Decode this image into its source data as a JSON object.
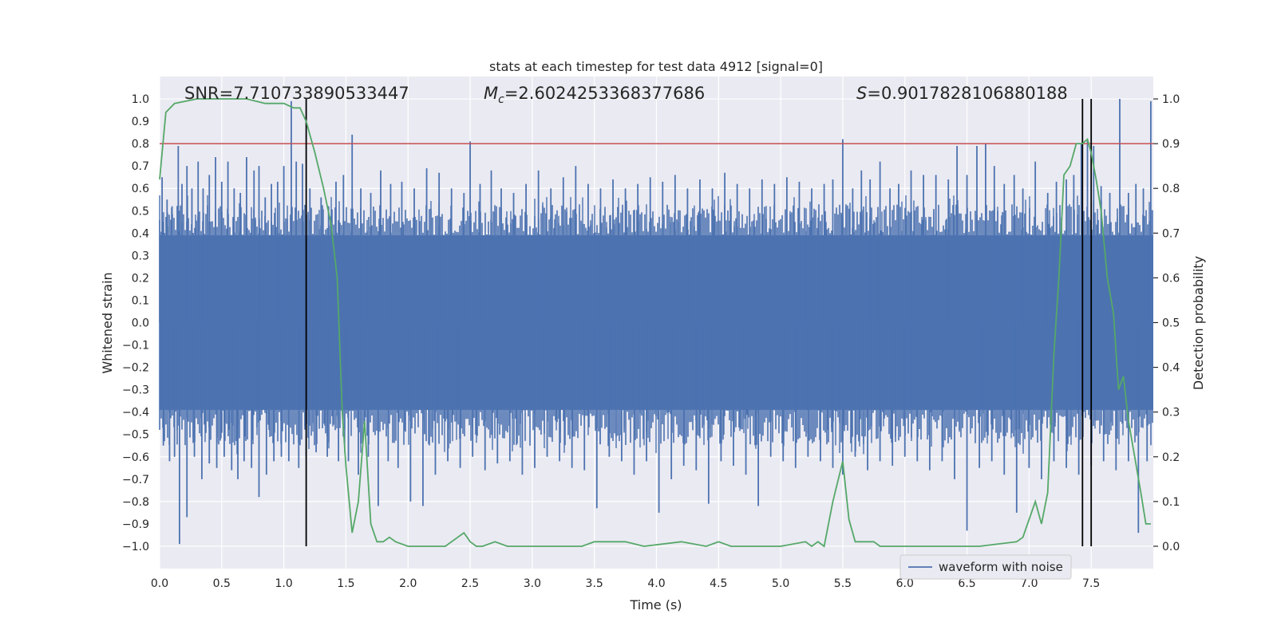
{
  "chart_data": {
    "type": "line",
    "title": "stats at each timestep for test data 4912 [signal=0]",
    "xlabel": "Time (s)",
    "ylabel": "Whitened strain",
    "y2label": "Detection probability",
    "xlim": [
      0.0,
      8.0
    ],
    "ylim": [
      -1.1,
      1.1
    ],
    "y2lim": [
      -0.05,
      1.05
    ],
    "xticks": [
      0.0,
      0.5,
      1.0,
      1.5,
      2.0,
      2.5,
      3.0,
      3.5,
      4.0,
      4.5,
      5.0,
      5.5,
      6.0,
      6.5,
      7.0,
      7.5
    ],
    "xtick_labels": [
      "0.0",
      "0.5",
      "1.0",
      "1.5",
      "2.0",
      "2.5",
      "3.0",
      "3.5",
      "4.0",
      "4.5",
      "5.0",
      "5.5",
      "6.0",
      "6.5",
      "7.0",
      "7.5"
    ],
    "yticks": [
      1.0,
      0.9,
      0.8,
      0.7,
      0.6,
      0.5,
      0.4,
      0.3,
      0.2,
      0.1,
      0.0,
      -0.1,
      -0.2,
      -0.3,
      -0.4,
      -0.5,
      -0.6,
      -0.7,
      -0.8,
      -0.9,
      -1.0
    ],
    "ytick_labels": [
      "1.0",
      "0.9",
      "0.8",
      "0.7",
      "0.6",
      "0.5",
      "0.4",
      "0.3",
      "0.2",
      "0.1",
      "0.0",
      "−0.1",
      "−0.2",
      "−0.3",
      "−0.4",
      "−0.5",
      "−0.6",
      "−0.7",
      "−0.8",
      "−0.9",
      "−1.0"
    ],
    "y2ticks": [
      1.0,
      0.9,
      0.8,
      0.7,
      0.6,
      0.5,
      0.4,
      0.3,
      0.2,
      0.1,
      0.0
    ],
    "y2tick_labels": [
      "1.0",
      "0.9",
      "0.8",
      "0.7",
      "0.6",
      "0.5",
      "0.4",
      "0.3",
      "0.2",
      "0.1",
      "0.0"
    ],
    "grid": true,
    "legend": {
      "position": "lower-right",
      "entries": [
        "waveform with noise"
      ]
    },
    "annotations": {
      "snr": "SNR=7.710733890533447",
      "mc_symbol": "M",
      "mc_sub": "c",
      "mc_value": "=2.6024253368377686",
      "s_symbol": "S",
      "s_value": "=0.9017828106880188"
    },
    "threshold": {
      "y2": 0.9,
      "color": "#c44e52"
    },
    "vlines": [
      1.18,
      7.43,
      7.5
    ],
    "vline_range": [
      -1.0,
      1.0
    ],
    "colors": {
      "waveform": "#4c72b0",
      "probability": "#55a868",
      "plot_bg": "#eaeaf2",
      "vline": "#000000"
    },
    "waveform": {
      "name": "waveform with noise",
      "core_amplitude": 0.39,
      "spike_times": [
        0.02,
        0.06,
        0.1,
        0.15,
        0.18,
        0.22,
        0.26,
        0.31,
        0.35,
        0.4,
        0.45,
        0.5,
        0.55,
        0.6,
        0.65,
        0.7,
        0.76,
        0.8,
        0.85,
        0.9,
        0.95,
        1.0,
        1.06,
        1.1,
        1.15,
        1.21,
        1.3,
        1.36,
        1.42,
        1.48,
        1.55,
        1.62,
        1.7,
        1.78,
        1.86,
        1.95,
        2.05,
        2.15,
        2.25,
        2.35,
        2.45,
        2.5,
        2.58,
        2.67,
        2.75,
        2.85,
        2.95,
        3.05,
        3.15,
        3.25,
        3.35,
        3.45,
        3.55,
        3.65,
        3.75,
        3.85,
        3.95,
        4.05,
        4.15,
        4.25,
        4.35,
        4.45,
        4.55,
        4.65,
        4.75,
        4.85,
        4.95,
        5.05,
        5.15,
        5.25,
        5.35,
        5.42,
        5.5,
        5.58,
        5.65,
        5.72,
        5.8,
        5.88,
        5.95,
        6.05,
        6.15,
        6.25,
        6.35,
        6.42,
        6.5,
        6.58,
        6.65,
        6.72,
        6.8,
        6.88,
        6.95,
        7.05,
        7.15,
        7.22,
        7.3,
        7.36,
        7.42,
        7.47,
        7.52,
        7.58,
        7.65,
        7.73,
        7.8,
        7.86,
        7.92,
        7.98
      ],
      "spike_values": [
        0.65,
        0.55,
        0.52,
        0.79,
        0.62,
        0.7,
        0.6,
        0.72,
        0.6,
        0.66,
        0.74,
        0.63,
        0.72,
        0.6,
        0.58,
        0.74,
        0.68,
        0.7,
        0.56,
        0.62,
        0.63,
        0.7,
        0.99,
        0.72,
        0.71,
        0.6,
        0.56,
        0.52,
        0.63,
        0.66,
        0.84,
        0.6,
        0.58,
        0.68,
        0.62,
        0.63,
        0.6,
        0.69,
        0.67,
        0.6,
        0.58,
        0.81,
        0.62,
        0.68,
        0.6,
        0.58,
        0.62,
        0.68,
        0.6,
        0.65,
        0.7,
        0.62,
        0.6,
        0.64,
        0.6,
        0.62,
        0.65,
        0.63,
        0.66,
        0.6,
        0.64,
        0.6,
        0.67,
        0.62,
        0.6,
        0.64,
        0.62,
        0.65,
        0.63,
        0.6,
        0.62,
        0.64,
        0.82,
        0.6,
        0.68,
        0.64,
        0.72,
        0.6,
        0.62,
        0.68,
        0.66,
        0.66,
        0.64,
        0.79,
        0.66,
        0.79,
        0.8,
        0.7,
        0.62,
        0.66,
        0.6,
        0.72,
        0.58,
        0.63,
        0.64,
        0.66,
        0.8,
        0.82,
        0.79,
        0.61,
        0.58,
        1.0,
        0.58,
        0.62,
        0.6,
        0.99
      ],
      "dip_times": [
        0.03,
        0.08,
        0.12,
        0.16,
        0.22,
        0.28,
        0.34,
        0.4,
        0.46,
        0.52,
        0.58,
        0.63,
        0.68,
        0.74,
        0.8,
        0.86,
        0.92,
        0.98,
        1.04,
        1.12,
        1.18,
        1.26,
        1.35,
        1.44,
        1.52,
        1.6,
        1.68,
        1.76,
        1.84,
        1.92,
        2.02,
        2.12,
        2.22,
        2.32,
        2.42,
        2.52,
        2.62,
        2.72,
        2.82,
        2.92,
        3.02,
        3.12,
        3.22,
        3.32,
        3.42,
        3.52,
        3.62,
        3.72,
        3.82,
        3.92,
        4.02,
        4.12,
        4.22,
        4.32,
        4.42,
        4.52,
        4.62,
        4.72,
        4.82,
        4.92,
        5.02,
        5.12,
        5.22,
        5.32,
        5.42,
        5.5,
        5.6,
        5.7,
        5.8,
        5.9,
        6.0,
        6.1,
        6.2,
        6.3,
        6.4,
        6.5,
        6.6,
        6.7,
        6.8,
        6.9,
        7.0,
        7.1,
        7.2,
        7.3,
        7.4,
        7.5,
        7.6,
        7.7,
        7.8,
        7.88,
        7.95
      ],
      "dip_values": [
        -0.55,
        -0.62,
        -0.6,
        -0.99,
        -0.87,
        -0.6,
        -0.7,
        -0.63,
        -0.65,
        -0.6,
        -0.66,
        -0.7,
        -0.62,
        -0.65,
        -0.78,
        -0.68,
        -0.62,
        -0.6,
        -0.62,
        -0.65,
        -0.6,
        -0.58,
        -0.6,
        -0.62,
        -0.62,
        -0.68,
        -0.6,
        -0.82,
        -0.62,
        -0.65,
        -0.8,
        -0.82,
        -0.68,
        -0.62,
        -0.65,
        -0.6,
        -0.66,
        -0.63,
        -0.62,
        -0.68,
        -0.65,
        -0.6,
        -0.62,
        -0.65,
        -0.66,
        -0.83,
        -0.6,
        -0.62,
        -0.68,
        -0.62,
        -0.85,
        -0.7,
        -0.64,
        -0.66,
        -0.81,
        -0.62,
        -0.64,
        -0.68,
        -0.82,
        -0.6,
        -0.62,
        -0.65,
        -0.6,
        -0.62,
        -0.65,
        -0.68,
        -0.6,
        -0.66,
        -0.62,
        -0.64,
        -0.6,
        -0.62,
        -0.66,
        -0.62,
        -0.7,
        -0.93,
        -0.65,
        -0.62,
        -0.68,
        -0.85,
        -0.65,
        -0.7,
        -0.62,
        -0.65,
        -0.68,
        -0.64,
        -0.62,
        -0.66,
        -0.62,
        -0.94,
        -0.62
      ]
    },
    "probability": {
      "x": [
        0.0,
        0.05,
        0.12,
        0.3,
        0.5,
        0.7,
        0.85,
        1.0,
        1.08,
        1.13,
        1.18,
        1.25,
        1.32,
        1.38,
        1.43,
        1.47,
        1.5,
        1.55,
        1.6,
        1.65,
        1.7,
        1.75,
        1.8,
        1.85,
        1.9,
        2.0,
        2.1,
        2.2,
        2.3,
        2.4,
        2.45,
        2.5,
        2.55,
        2.6,
        2.7,
        2.8,
        3.0,
        3.2,
        3.4,
        3.5,
        3.6,
        3.75,
        3.9,
        4.2,
        4.4,
        4.5,
        4.6,
        4.8,
        5.0,
        5.2,
        5.25,
        5.3,
        5.35,
        5.42,
        5.5,
        5.55,
        5.6,
        5.65,
        5.7,
        5.75,
        5.8,
        6.0,
        6.2,
        6.6,
        6.9,
        6.95,
        7.0,
        7.05,
        7.1,
        7.15,
        7.2,
        7.24,
        7.28,
        7.33,
        7.38,
        7.43,
        7.47,
        7.5,
        7.54,
        7.58,
        7.63,
        7.68,
        7.72,
        7.76,
        7.8,
        7.85,
        7.9,
        7.94,
        7.98
      ],
      "y": [
        0.82,
        0.97,
        0.99,
        1.0,
        1.0,
        1.0,
        0.99,
        0.99,
        0.98,
        0.98,
        0.95,
        0.88,
        0.8,
        0.72,
        0.6,
        0.3,
        0.18,
        0.03,
        0.1,
        0.28,
        0.05,
        0.01,
        0.01,
        0.02,
        0.01,
        0.0,
        0.0,
        0.0,
        0.0,
        0.02,
        0.03,
        0.01,
        0.0,
        0.0,
        0.01,
        0.0,
        0.0,
        0.0,
        0.0,
        0.01,
        0.01,
        0.01,
        0.0,
        0.01,
        0.0,
        0.01,
        0.0,
        0.0,
        0.0,
        0.01,
        0.0,
        0.01,
        0.0,
        0.1,
        0.19,
        0.06,
        0.01,
        0.01,
        0.01,
        0.01,
        0.0,
        0.0,
        0.0,
        0.0,
        0.01,
        0.02,
        0.06,
        0.1,
        0.05,
        0.12,
        0.43,
        0.6,
        0.83,
        0.85,
        0.9,
        0.9,
        0.91,
        0.88,
        0.82,
        0.75,
        0.6,
        0.52,
        0.35,
        0.38,
        0.28,
        0.2,
        0.12,
        0.05,
        0.05
      ]
    }
  }
}
